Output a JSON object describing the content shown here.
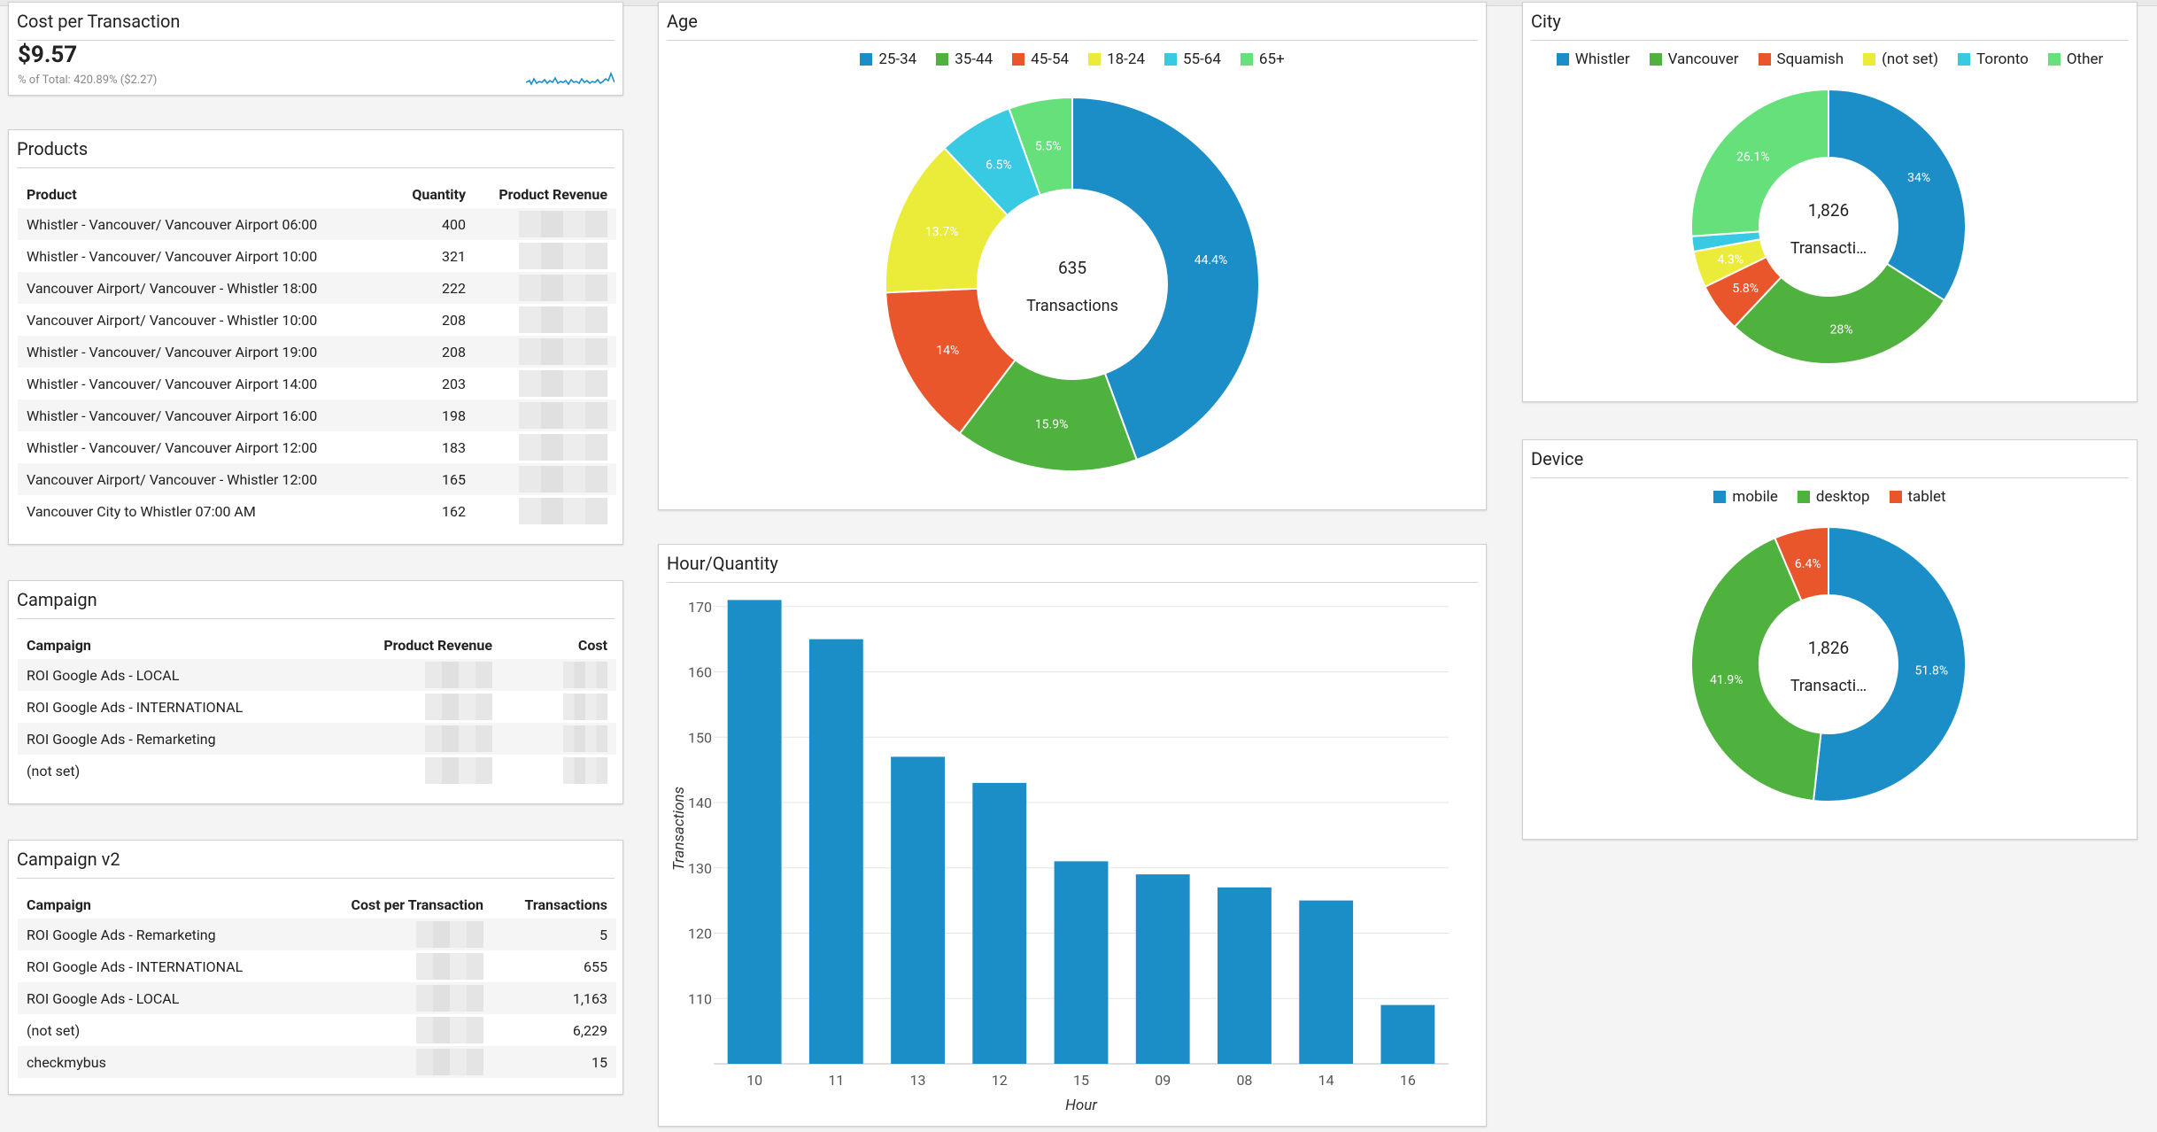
{
  "kpi": {
    "title": "Cost per Transaction",
    "value": "$9.57",
    "sub_prefix": "% of Total: ",
    "sub_value": "420.89% ($2.27)"
  },
  "products": {
    "title": "Products",
    "headers": [
      "Product",
      "Quantity",
      "Product Revenue"
    ],
    "rows": [
      [
        "Whistler - Vancouver/ Vancouver Airport 06:00",
        "400"
      ],
      [
        "Whistler - Vancouver/ Vancouver Airport 10:00",
        "321"
      ],
      [
        "Vancouver Airport/ Vancouver - Whistler 18:00",
        "222"
      ],
      [
        "Vancouver Airport/ Vancouver - Whistler 10:00",
        "208"
      ],
      [
        "Whistler - Vancouver/ Vancouver Airport 19:00",
        "208"
      ],
      [
        "Whistler - Vancouver/ Vancouver Airport 14:00",
        "203"
      ],
      [
        "Whistler - Vancouver/ Vancouver Airport 16:00",
        "198"
      ],
      [
        "Whistler - Vancouver/ Vancouver Airport 12:00",
        "183"
      ],
      [
        "Vancouver Airport/ Vancouver - Whistler 12:00",
        "165"
      ],
      [
        "Vancouver City to Whistler 07:00 AM",
        "162"
      ]
    ]
  },
  "campaign": {
    "title": "Campaign",
    "headers": [
      "Campaign",
      "Product Revenue",
      "Cost"
    ],
    "rows": [
      "ROI Google Ads - LOCAL",
      "ROI Google Ads - INTERNATIONAL",
      "ROI Google Ads - Remarketing",
      "(not set)"
    ]
  },
  "campaign_v2": {
    "title": "Campaign v2",
    "headers": [
      "Campaign",
      "Cost per Transaction",
      "Transactions"
    ],
    "rows": [
      [
        "ROI Google Ads - Remarketing",
        "5"
      ],
      [
        "ROI Google Ads - INTERNATIONAL",
        "655"
      ],
      [
        "ROI Google Ads - LOCAL",
        "1,163"
      ],
      [
        "(not set)",
        "6,229"
      ],
      [
        "checkmybus",
        "15"
      ]
    ]
  },
  "age": {
    "title": "Age",
    "center_value": "635",
    "center_label": "Transactions"
  },
  "hour": {
    "title": "Hour/Quantity"
  },
  "city": {
    "title": "City",
    "center_value": "1,826",
    "center_label": "Transacti…"
  },
  "device": {
    "title": "Device",
    "center_value": "1,826",
    "center_label": "Transacti…"
  },
  "colors": {
    "blue": "#1b8ec8",
    "green": "#4fb23e",
    "orange": "#e9562b",
    "yellow": "#ebeb3a",
    "cyan": "#38c9e3",
    "lightgreen": "#66e07b"
  },
  "chart_data": [
    {
      "type": "pie",
      "title": "Age",
      "labels": [
        "25-34",
        "35-44",
        "45-54",
        "18-24",
        "55-64",
        "65+"
      ],
      "values": [
        44.4,
        15.9,
        14,
        13.7,
        6.5,
        5.5
      ],
      "value_labels": [
        "44.4%",
        "15.9%",
        "14%",
        "13.7%",
        "6.5%",
        "5.5%"
      ],
      "colors": [
        "#1b8ec8",
        "#4fb23e",
        "#e9562b",
        "#ebeb3a",
        "#38c9e3",
        "#66e07b"
      ],
      "legend": "top"
    },
    {
      "type": "bar",
      "title": "Hour/Quantity",
      "xlabel": "Hour",
      "ylabel": "Transactions",
      "categories": [
        "10",
        "11",
        "13",
        "12",
        "15",
        "09",
        "08",
        "14",
        "16"
      ],
      "values": [
        171,
        165,
        147,
        143,
        131,
        129,
        127,
        125,
        109
      ],
      "ylim": [
        100,
        172
      ],
      "yticks": [
        110,
        120,
        130,
        140,
        150,
        160,
        170
      ],
      "grid": true,
      "color": "#1b8ec8"
    },
    {
      "type": "pie",
      "title": "City",
      "labels": [
        "Whistler",
        "Vancouver",
        "Squamish",
        "(not set)",
        "Toronto",
        "Other"
      ],
      "values": [
        34,
        28,
        5.8,
        4.3,
        1.8,
        26.1
      ],
      "value_labels": [
        "34%",
        "28%",
        "5.8%",
        "4.3%",
        "",
        "26.1%"
      ],
      "colors": [
        "#1b8ec8",
        "#4fb23e",
        "#e9562b",
        "#ebeb3a",
        "#38c9e3",
        "#66e07b"
      ],
      "legend": "top"
    },
    {
      "type": "pie",
      "title": "Device",
      "labels": [
        "mobile",
        "desktop",
        "tablet"
      ],
      "values": [
        51.8,
        41.9,
        6.4
      ],
      "value_labels": [
        "51.8%",
        "41.9%",
        "6.4%"
      ],
      "colors": [
        "#1b8ec8",
        "#4fb23e",
        "#e9562b"
      ],
      "legend": "top"
    }
  ]
}
